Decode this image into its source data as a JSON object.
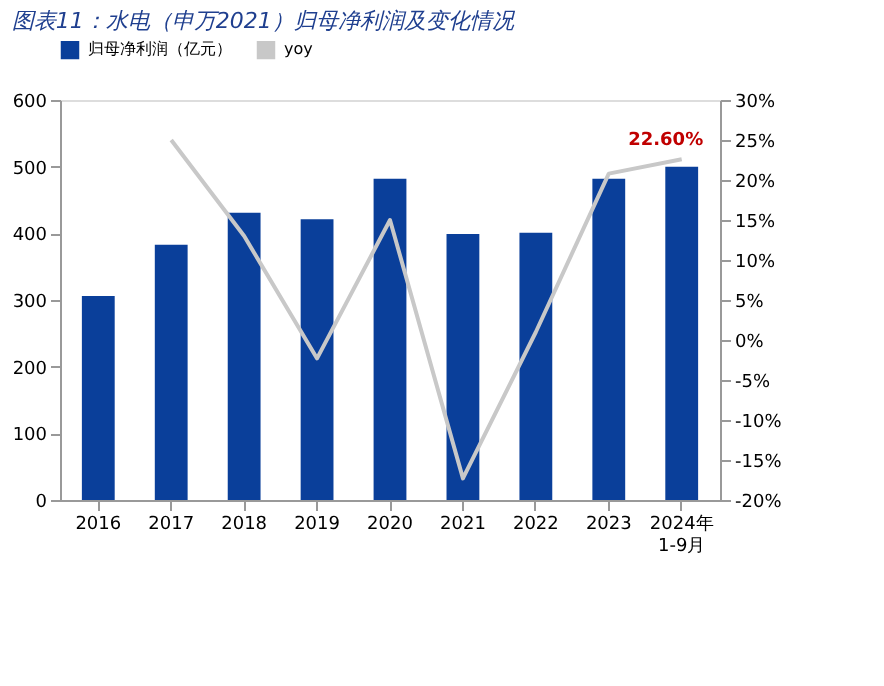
{
  "chart_data": {
    "type": "bar",
    "title": "图表11：水电（申万2021）归母净利润及变化情况",
    "categories": [
      "2016",
      "2017",
      "2018",
      "2019",
      "2020",
      "2021",
      "2022",
      "2023",
      "2024年\n1-9月"
    ],
    "series": [
      {
        "name": "归母净利润（亿元）",
        "color": "#0a3f9a",
        "values": [
          306,
          383,
          431,
          421,
          482,
          399,
          401,
          482,
          500
        ]
      },
      {
        "name": "yoy",
        "type": "line",
        "axis": "y2",
        "color": "#c8c8c8",
        "values": [
          null,
          25,
          13,
          -2.3,
          15,
          -17.3,
          1,
          20.8,
          22.6
        ],
        "value_labels": [
          null,
          null,
          null,
          null,
          null,
          null,
          null,
          null,
          "22.60%"
        ]
      }
    ],
    "ylim": [
      0,
      600
    ],
    "yticks": [
      0,
      100,
      200,
      300,
      400,
      500,
      600
    ],
    "y2lim": [
      -20,
      30
    ],
    "y2ticks": [
      {
        "value": -20,
        "label": "-20%"
      },
      {
        "value": -15,
        "label": "-15%"
      },
      {
        "value": -10,
        "label": "-10%"
      },
      {
        "value": -5,
        "label": "-5%"
      },
      {
        "value": 0,
        "label": "0%"
      },
      {
        "value": 5,
        "label": "5%"
      },
      {
        "value": 10,
        "label": "10%"
      },
      {
        "value": 15,
        "label": "15%"
      },
      {
        "value": 20,
        "label": "20%"
      },
      {
        "value": 25,
        "label": "25%"
      },
      {
        "value": 30,
        "label": "30%"
      }
    ],
    "grid": false,
    "legend": "top"
  }
}
